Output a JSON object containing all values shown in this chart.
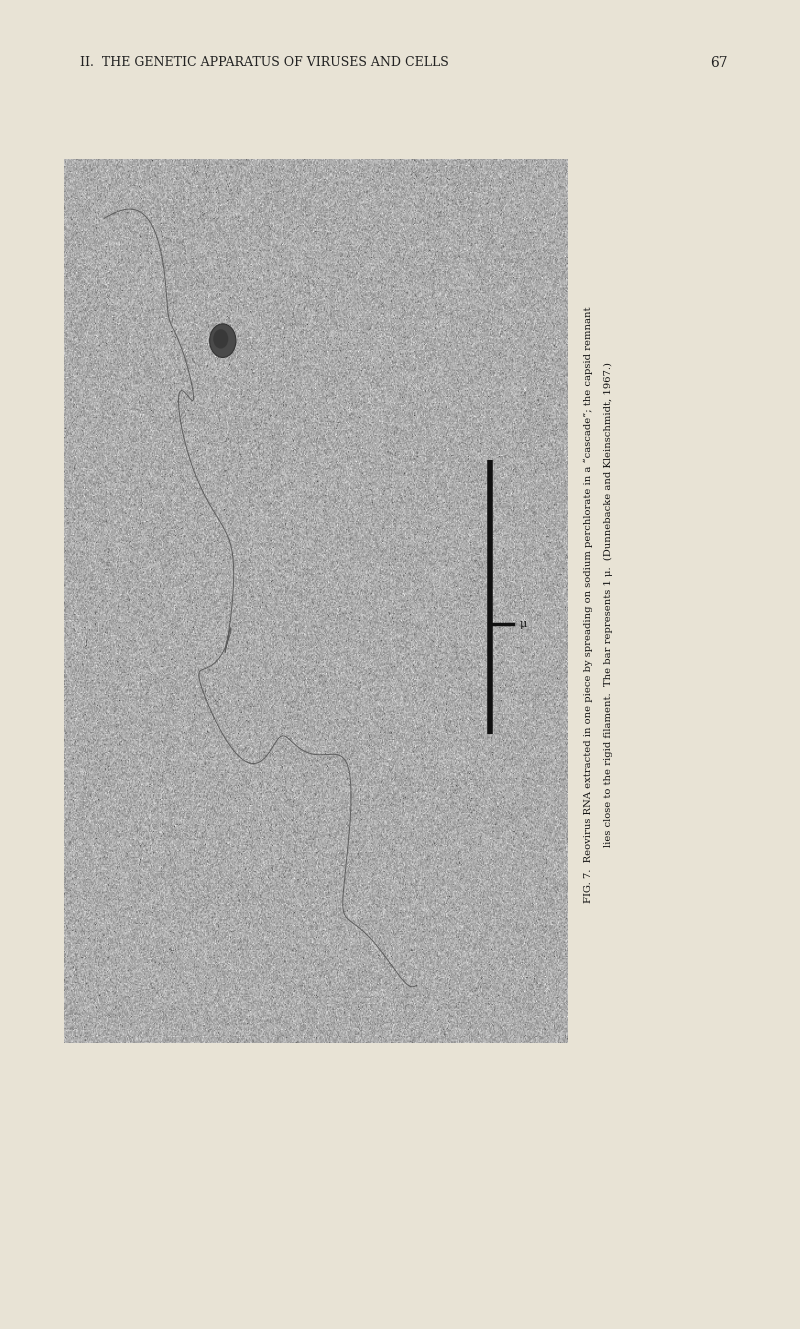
{
  "page_bg": "#e8e3d5",
  "page_width": 8.0,
  "page_height": 13.29,
  "dpi": 100,
  "header_text": "II.  THE GENETIC APPARATUS OF VIRUSES AND CELLS",
  "page_number": "67",
  "noise_mean": 172,
  "noise_std": 20,
  "filament_color": "#555555",
  "capsid_color": "#444444",
  "bar_color": "#111111",
  "side_text_line1": "FIG. 7.  Reovirus RNA extracted in one piece by spreading on sodium perchlorate in a “cascade”; the capsid remnant",
  "side_text_line2": "lies close to the rigid filament.  The bar represents 1 μ.  (Dunnebacke and Kleinschmidt, 1967.)"
}
